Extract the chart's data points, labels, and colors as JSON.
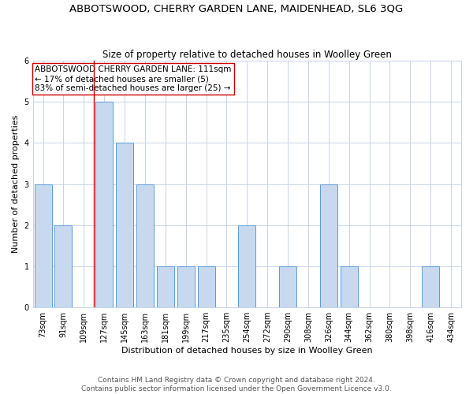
{
  "title": "ABBOTSWOOD, CHERRY GARDEN LANE, MAIDENHEAD, SL6 3QG",
  "subtitle": "Size of property relative to detached houses in Woolley Green",
  "xlabel": "Distribution of detached houses by size in Woolley Green",
  "ylabel": "Number of detached properties",
  "footer_line1": "Contains HM Land Registry data © Crown copyright and database right 2024.",
  "footer_line2": "Contains public sector information licensed under the Open Government Licence v3.0.",
  "categories": [
    "73sqm",
    "91sqm",
    "109sqm",
    "127sqm",
    "145sqm",
    "163sqm",
    "181sqm",
    "199sqm",
    "217sqm",
    "235sqm",
    "254sqm",
    "272sqm",
    "290sqm",
    "308sqm",
    "326sqm",
    "344sqm",
    "362sqm",
    "380sqm",
    "398sqm",
    "416sqm",
    "434sqm"
  ],
  "values": [
    3,
    2,
    0,
    5,
    4,
    3,
    1,
    1,
    1,
    0,
    2,
    0,
    1,
    0,
    3,
    1,
    0,
    0,
    0,
    1,
    0
  ],
  "bar_color": "#c8d9ef",
  "bar_edge_color": "#5b9bd5",
  "vline_x": 2.5,
  "vline_color": "#cc0000",
  "annotation_text": "ABBOTSWOOD CHERRY GARDEN LANE: 111sqm\n← 17% of detached houses are smaller (5)\n83% of semi-detached houses are larger (25) →",
  "annotation_box_color": "#ffffff",
  "annotation_box_edge_color": "#cc0000",
  "ylim": [
    0,
    6
  ],
  "yticks": [
    0,
    1,
    2,
    3,
    4,
    5,
    6
  ],
  "title_fontsize": 9.5,
  "subtitle_fontsize": 8.5,
  "xlabel_fontsize": 8,
  "ylabel_fontsize": 8,
  "tick_fontsize": 7,
  "annotation_fontsize": 7.5,
  "footer_fontsize": 6.5,
  "background_color": "#ffffff",
  "grid_color": "#c8d4e8",
  "bar_width": 0.85,
  "figsize": [
    6.0,
    5.0
  ],
  "dpi": 100
}
